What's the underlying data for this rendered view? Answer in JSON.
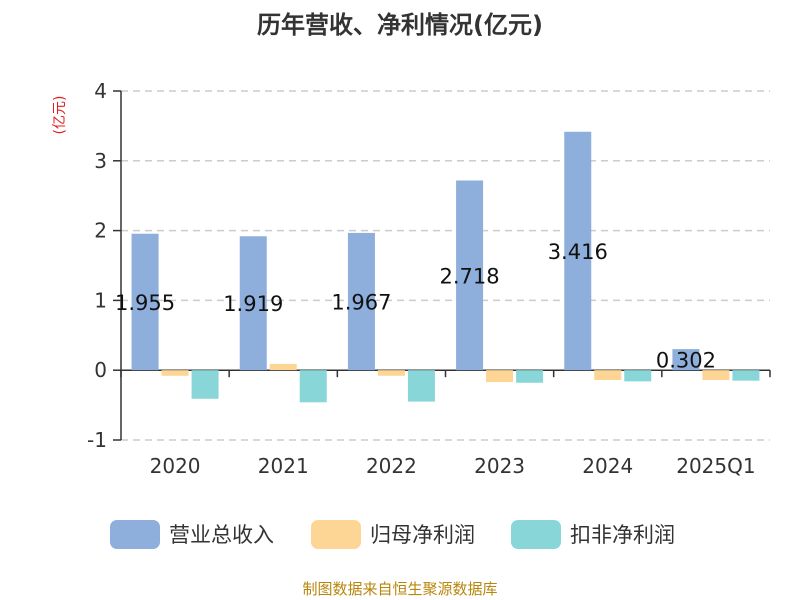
{
  "chart_data": {
    "type": "bar",
    "title": "历年营收、净利情况(亿元)",
    "ylabel": "(亿元)",
    "categories": [
      "2020",
      "2021",
      "2022",
      "2023",
      "2024",
      "2025Q1"
    ],
    "series": [
      {
        "name": "营业总收入",
        "color": "#8eaedb",
        "values": [
          1.955,
          1.919,
          1.967,
          2.718,
          3.416,
          0.302
        ],
        "show_labels": true
      },
      {
        "name": "归母净利润",
        "color": "#fdd594",
        "values": [
          -0.08,
          0.09,
          -0.08,
          -0.17,
          -0.14,
          -0.14
        ],
        "show_labels": false
      },
      {
        "name": "扣非净利润",
        "color": "#88d6d8",
        "values": [
          -0.41,
          -0.46,
          -0.45,
          -0.18,
          -0.16,
          -0.15
        ],
        "show_labels": false
      }
    ],
    "ylim": [
      -1,
      4
    ],
    "yticks": [
      "-1",
      "0",
      "1",
      "2",
      "3",
      "4"
    ],
    "grid": true,
    "legend_position": "bottom"
  },
  "source_text": "制图数据来自恒生聚源数据库"
}
